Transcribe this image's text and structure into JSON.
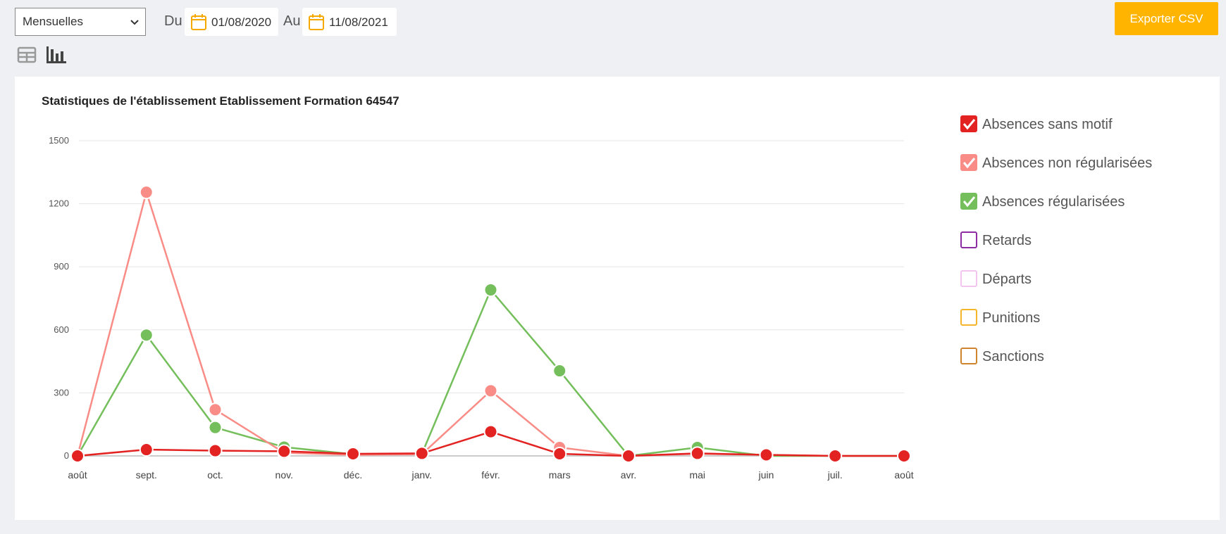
{
  "controls": {
    "period": "Mensuelles",
    "from_label": "Du",
    "from": "01/08/2020",
    "to_label": "Au",
    "to": "11/08/2021",
    "export": "Exporter CSV"
  },
  "chart_data": {
    "type": "line",
    "title": "Statistiques de l'établissement Etablissement Formation 64547",
    "categories": [
      "août",
      "sept.",
      "oct.",
      "nov.",
      "déc.",
      "janv.",
      "févr.",
      "mars",
      "avr.",
      "mai",
      "juin",
      "juil.",
      "août"
    ],
    "ylim": [
      0,
      1500
    ],
    "yticks": [
      0,
      300,
      600,
      900,
      1200,
      1500
    ],
    "grid": true,
    "series": [
      {
        "name": "Absences sans motif",
        "color": "#e32222",
        "checked": true,
        "values": [
          0,
          30,
          25,
          22,
          10,
          12,
          115,
          10,
          0,
          12,
          5,
          0,
          0
        ]
      },
      {
        "name": "Absences non régularisées",
        "color": "#f98c86",
        "checked": true,
        "values": [
          0,
          1255,
          220,
          15,
          5,
          8,
          310,
          40,
          0,
          10,
          5,
          0,
          0
        ]
      },
      {
        "name": "Absences régularisées",
        "color": "#74bf5b",
        "checked": true,
        "values": [
          0,
          575,
          135,
          42,
          8,
          10,
          790,
          405,
          0,
          40,
          0,
          0,
          0
        ]
      },
      {
        "name": "Retards",
        "color": "#8e2ca3",
        "checked": false
      },
      {
        "name": "Départs",
        "color": "#f2c4ee",
        "checked": false
      },
      {
        "name": "Punitions",
        "color": "#f5b52c",
        "checked": false
      },
      {
        "name": "Sanctions",
        "color": "#cf8530",
        "checked": false
      }
    ]
  }
}
